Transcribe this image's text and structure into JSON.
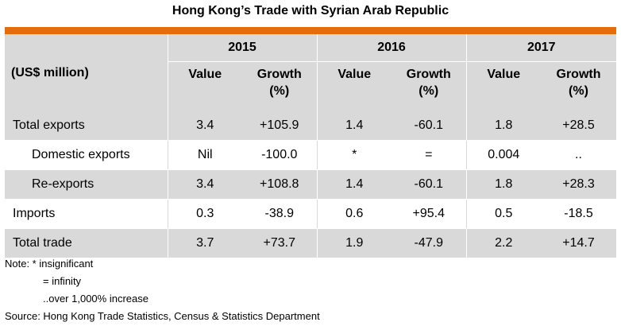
{
  "title": "Hong Kong’s Trade with Syrian Arab Republic",
  "header": {
    "unit": "(US$ million)",
    "years": [
      "2015",
      "2016",
      "2017"
    ],
    "value_label": "Value",
    "growth_label_1": "Growth",
    "growth_label_2": "(%)"
  },
  "rows": [
    {
      "label": "Total exports",
      "cells": [
        "3.4",
        "+105.9",
        "1.4",
        "-60.1",
        "1.8",
        "+28.5"
      ]
    },
    {
      "label": "Domestic exports",
      "cells": [
        "Nil",
        "-100.0",
        "*",
        "=",
        "0.004",
        ".."
      ]
    },
    {
      "label": "Re-exports",
      "cells": [
        "3.4",
        "+108.8",
        "1.4",
        "-60.1",
        "1.8",
        "+28.3"
      ]
    },
    {
      "label": "Imports",
      "cells": [
        "0.3",
        "-38.9",
        "0.6",
        "+95.4",
        "0.5",
        "-18.5"
      ]
    },
    {
      "label": "Total trade",
      "cells": [
        "3.7",
        "+73.7",
        "1.9",
        "-47.9",
        "2.2",
        "+14.7"
      ]
    }
  ],
  "notes": {
    "line1": "Note: * insignificant",
    "line2": "= infinity",
    "line3": "..over 1,000% increase",
    "source": "Source: Hong Kong Trade Statistics, Census & Statistics Department"
  },
  "colors": {
    "accent_bar": "#e46c0a",
    "shade": "#d9d9d9"
  }
}
